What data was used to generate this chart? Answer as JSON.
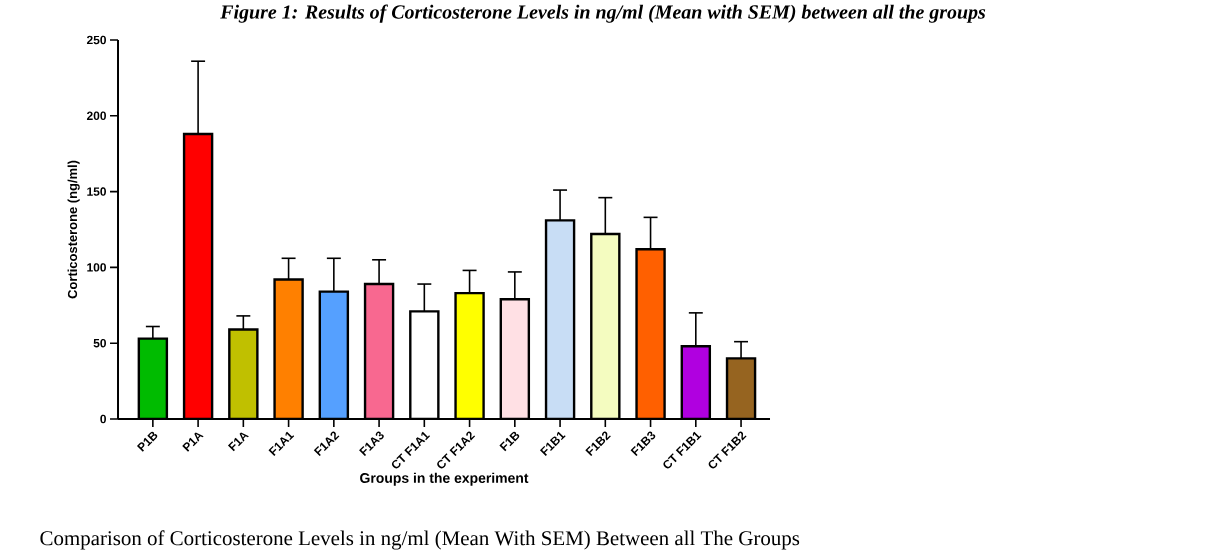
{
  "chart_data": {
    "type": "bar",
    "title": "Figure 1: Results of Corticosterone Levels in ng/ml (Mean with SEM) between all the groups",
    "xlabel": "Groups in the experiment",
    "ylabel": "Corticosterone (ng/ml)",
    "categories": [
      "P1B",
      "P1A",
      "F1A",
      "F1A1",
      "F1A2",
      "F1A3",
      "CT F1A1",
      "CT F1A2",
      "F1B",
      "F1B1",
      "F1B2",
      "F1B3",
      "CT F1B1",
      "CT F1B2"
    ],
    "values": [
      53,
      188,
      59,
      92,
      84,
      89,
      71,
      83,
      79,
      131,
      122,
      112,
      48,
      40
    ],
    "errors": [
      8,
      48,
      9,
      14,
      22,
      16,
      18,
      15,
      18,
      20,
      24,
      21,
      22,
      11
    ],
    "colors": [
      "#00bb00",
      "#ff0000",
      "#c0c000",
      "#ff8000",
      "#55a0ff",
      "#f86890",
      "#ffffff",
      "#ffff00",
      "#ffe0e4",
      "#c8ddf5",
      "#f4fcc0",
      "#ff6000",
      "#b000e0",
      "#966420"
    ],
    "ylim": [
      0,
      250
    ],
    "yticks": [
      0,
      50,
      100,
      150,
      200,
      250
    ],
    "annotations": [
      "Comparison of Corticosterone Levels in ng/ml (Mean With SEM) Between all The Groups"
    ]
  }
}
